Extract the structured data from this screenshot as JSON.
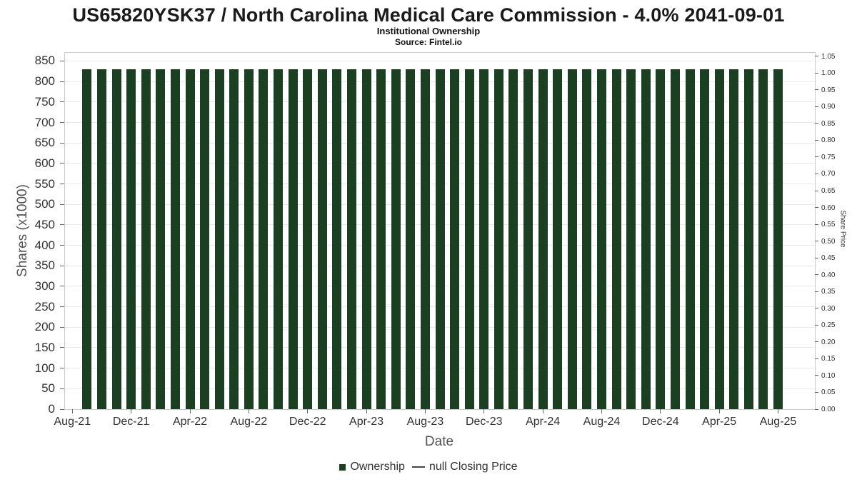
{
  "chart_data": {
    "type": "bar",
    "title": "US65820YSK37 / North Carolina Medical Care Commission - 4.0% 2041-09-01",
    "subtitle": "Institutional Ownership",
    "source": "Source: Fintel.io",
    "xlabel": "Date",
    "ylabel": "Shares (x1000)",
    "ylabel_right": "Share Price",
    "categories": [
      "Sep-21",
      "Oct-21",
      "Nov-21",
      "Dec-21",
      "Jan-22",
      "Feb-22",
      "Mar-22",
      "Apr-22",
      "May-22",
      "Jun-22",
      "Jul-22",
      "Aug-22",
      "Sep-22",
      "Oct-22",
      "Nov-22",
      "Dec-22",
      "Jan-23",
      "Feb-23",
      "Mar-23",
      "Apr-23",
      "May-23",
      "Jun-23",
      "Jul-23",
      "Aug-23",
      "Sep-23",
      "Oct-23",
      "Nov-23",
      "Dec-23",
      "Jan-24",
      "Feb-24",
      "Mar-24",
      "Apr-24",
      "May-24",
      "Jun-24",
      "Jul-24",
      "Aug-24",
      "Sep-24",
      "Oct-24",
      "Nov-24",
      "Dec-24",
      "Jan-25",
      "Feb-25",
      "Mar-25",
      "Apr-25",
      "May-25",
      "Jun-25",
      "Jul-25",
      "Aug-25"
    ],
    "values": [
      830,
      830,
      830,
      830,
      830,
      830,
      830,
      830,
      830,
      830,
      830,
      830,
      830,
      830,
      830,
      830,
      830,
      830,
      830,
      830,
      830,
      830,
      830,
      830,
      830,
      830,
      830,
      830,
      830,
      830,
      830,
      830,
      830,
      830,
      830,
      830,
      830,
      830,
      830,
      830,
      830,
      830,
      830,
      830,
      830,
      830,
      830,
      830
    ],
    "left_axis": {
      "min": 0,
      "max": 850,
      "step": 50,
      "plot_max": 870
    },
    "right_axis": {
      "min": 0,
      "max": 1.05,
      "step": 0.05,
      "plot_max": 1.06
    },
    "x_tick_labels": [
      "Aug-21",
      "Dec-21",
      "Apr-22",
      "Aug-22",
      "Dec-22",
      "Apr-23",
      "Aug-23",
      "Dec-23",
      "Apr-24",
      "Aug-24",
      "Dec-24",
      "Apr-25",
      "Aug-25"
    ],
    "x_tick_every": 4,
    "bar_color": "#1b4021",
    "grid_color": "#e9e9e9",
    "legend": [
      {
        "label": "Ownership",
        "marker": "square",
        "color": "#1b4021"
      },
      {
        "label": "null Closing Price",
        "marker": "line",
        "color": "#444444"
      }
    ]
  }
}
